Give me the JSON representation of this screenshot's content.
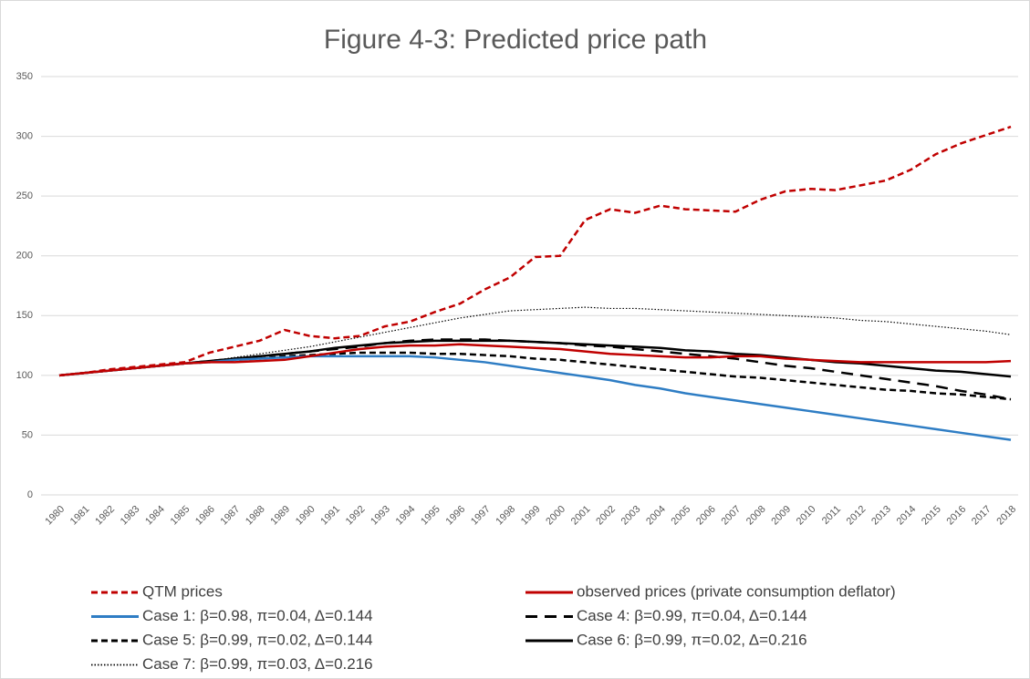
{
  "chart_data": {
    "type": "line",
    "title": "Figure 4-3: Predicted price path",
    "categories": [
      "1980",
      "1981",
      "1982",
      "1983",
      "1984",
      "1985",
      "1986",
      "1987",
      "1988",
      "1989",
      "1990",
      "1991",
      "1992",
      "1993",
      "1994",
      "1995",
      "1996",
      "1997",
      "1998",
      "1999",
      "2000",
      "2001",
      "2002",
      "2003",
      "2004",
      "2005",
      "2006",
      "2007",
      "2008",
      "2009",
      "2010",
      "2011",
      "2012",
      "2013",
      "2014",
      "2015",
      "2016",
      "2017",
      "2018"
    ],
    "ylim": [
      0,
      350
    ],
    "yticks": [
      0,
      50,
      100,
      150,
      200,
      250,
      300,
      350
    ],
    "grid": true,
    "legend": "bottom",
    "series": [
      {
        "name": "QTM prices",
        "color": "#c00000",
        "line_style": "dash",
        "values": [
          100,
          102,
          105,
          107,
          109,
          111,
          119,
          124,
          129,
          138,
          133,
          131,
          133,
          141,
          145,
          153,
          160,
          172,
          182,
          199,
          200,
          230,
          239,
          236,
          242,
          239,
          238,
          237,
          247,
          254,
          256,
          255,
          259,
          263,
          272,
          285,
          294,
          301,
          308
        ]
      },
      {
        "name": "observed prices (private consumption deflator)",
        "color": "#c00000",
        "line_style": "solid",
        "values": [
          100,
          102,
          104,
          106,
          108,
          110,
          111,
          111,
          112,
          113,
          116,
          119,
          122,
          124,
          125,
          125,
          126,
          125,
          124,
          123,
          122,
          120,
          118,
          117,
          116,
          115,
          115,
          116,
          116,
          114,
          113,
          112,
          111,
          111,
          111,
          111,
          111,
          111,
          112
        ]
      },
      {
        "name": "Case 1: β=0.98, π=0.04, Δ=0.144",
        "color": "#2e7dc4",
        "line_style": "solid",
        "values": [
          100,
          102,
          104,
          106,
          108,
          110,
          111,
          113,
          114,
          115,
          116,
          116,
          116,
          116,
          116,
          115,
          113,
          111,
          108,
          105,
          102,
          99,
          96,
          92,
          89,
          85,
          82,
          79,
          76,
          73,
          70,
          67,
          64,
          61,
          58,
          55,
          52,
          49,
          46
        ]
      },
      {
        "name": "Case 4: β=0.99, π=0.04, Δ=0.144",
        "color": "#000000",
        "line_style": "long-dash",
        "values": [
          100,
          102,
          104,
          106,
          108,
          110,
          112,
          114,
          116,
          118,
          120,
          122,
          124,
          127,
          129,
          130,
          130,
          130,
          129,
          128,
          127,
          125,
          124,
          122,
          120,
          118,
          116,
          114,
          111,
          108,
          106,
          103,
          100,
          97,
          94,
          91,
          87,
          84,
          80
        ]
      },
      {
        "name": "Case 5: β=0.99, π=0.02, Δ=0.144",
        "color": "#000000",
        "line_style": "dash",
        "values": [
          100,
          102,
          104,
          106,
          108,
          110,
          111,
          113,
          114,
          116,
          117,
          118,
          119,
          119,
          119,
          118,
          118,
          117,
          116,
          114,
          113,
          111,
          109,
          107,
          105,
          103,
          101,
          99,
          98,
          96,
          94,
          92,
          90,
          88,
          87,
          85,
          84,
          82,
          80
        ]
      },
      {
        "name": "Case 6: β=0.99, π=0.02, Δ=0.216",
        "color": "#000000",
        "line_style": "solid",
        "values": [
          100,
          102,
          104,
          106,
          108,
          110,
          112,
          114,
          116,
          118,
          120,
          123,
          125,
          127,
          128,
          129,
          129,
          129,
          129,
          128,
          127,
          126,
          125,
          124,
          123,
          121,
          120,
          118,
          117,
          115,
          113,
          111,
          110,
          108,
          106,
          104,
          103,
          101,
          99
        ]
      },
      {
        "name": "Case 7: β=0.99, π=0.03, Δ=0.216",
        "color": "#000000",
        "line_style": "dot",
        "values": [
          100,
          102,
          104,
          106,
          108,
          110,
          112,
          115,
          118,
          121,
          124,
          128,
          132,
          136,
          140,
          144,
          148,
          151,
          154,
          155,
          156,
          157,
          156,
          156,
          155,
          154,
          153,
          152,
          151,
          150,
          149,
          148,
          146,
          145,
          143,
          141,
          139,
          137,
          134
        ]
      }
    ]
  }
}
